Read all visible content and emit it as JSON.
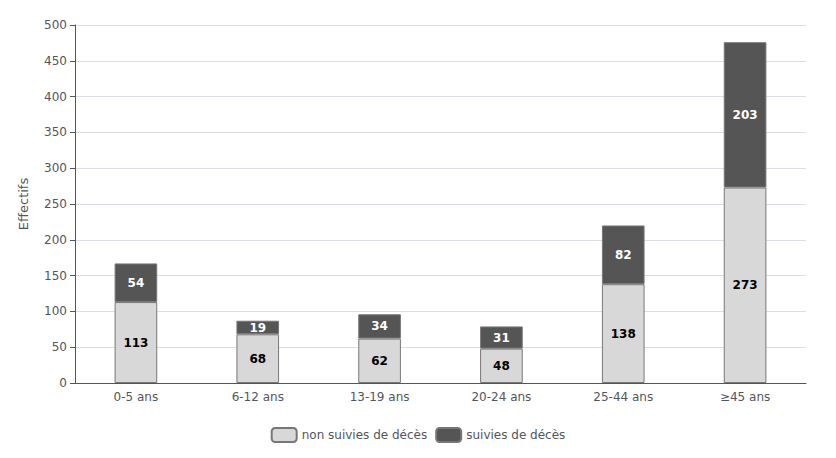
{
  "chart_data": {
    "type": "bar",
    "stacked": true,
    "data_labels": true,
    "categories": [
      "0-5 ans",
      "6-12 ans",
      "13-19 ans",
      "20-24 ans",
      "25-44 ans",
      "≥45 ans"
    ],
    "series": [
      {
        "name": "non suivies de décès",
        "color": "#d8d8d8",
        "values": [
          113,
          68,
          62,
          48,
          138,
          273
        ]
      },
      {
        "name": "suivies de décès",
        "color": "#555555",
        "values": [
          54,
          19,
          34,
          31,
          82,
          203
        ]
      }
    ],
    "ylabel": "Effectifs",
    "ylim": [
      0,
      500
    ],
    "yticks": [
      0,
      50,
      100,
      150,
      200,
      250,
      300,
      350,
      400,
      450,
      500
    ],
    "grid": true,
    "legend": "bottom"
  }
}
